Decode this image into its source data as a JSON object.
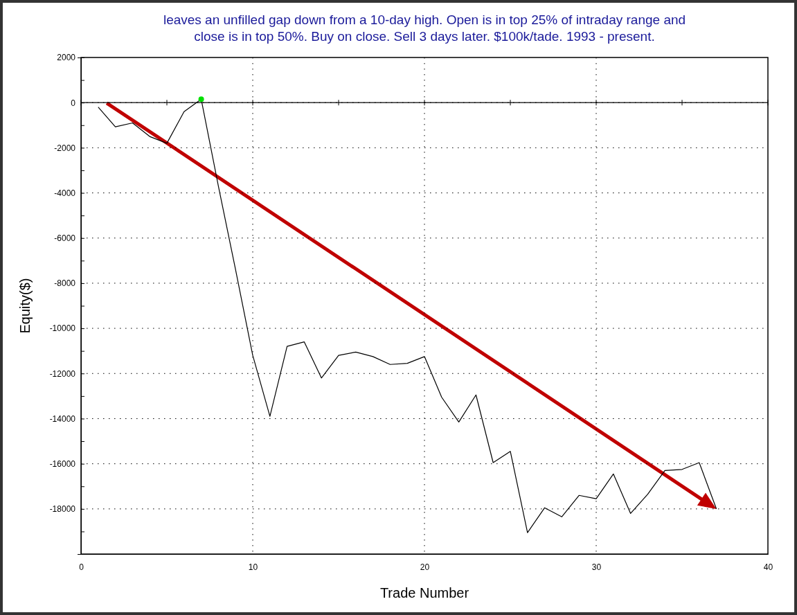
{
  "chart_data": {
    "type": "line",
    "title": "leaves an unfilled gap down from a 10-day high. Open is in top 25% of intraday range and\nclose is in top 50%. Buy on close. Sell 3 days later. $100k/tade. 1993 - present.",
    "xlabel": "Trade Number",
    "ylabel": "Equity($)",
    "x": [
      1,
      2,
      3,
      4,
      5,
      6,
      7,
      8,
      9,
      10,
      11,
      12,
      13,
      14,
      15,
      16,
      17,
      18,
      19,
      20,
      21,
      22,
      23,
      24,
      25,
      26,
      27,
      28,
      29,
      30,
      31,
      32,
      33,
      34,
      35,
      36,
      37
    ],
    "series": [
      {
        "color": "#000000",
        "values": [
          -200,
          -1070,
          -900,
          -1500,
          -1800,
          -400,
          150,
          -3700,
          -7400,
          -11200,
          -13900,
          -10800,
          -10600,
          -12200,
          -11200,
          -11050,
          -11250,
          -11600,
          -11550,
          -11250,
          -13050,
          -14150,
          -12950,
          -15950,
          -15450,
          -19050,
          -17950,
          -18350,
          -17400,
          -17550,
          -16450,
          -18200,
          -17350,
          -16300,
          -16250,
          -15950,
          -18000
        ]
      },
      {
        "type": "scatter",
        "color": "#00e000",
        "marker": "circle",
        "x": [
          7
        ],
        "values": [
          150
        ]
      }
    ],
    "xlim": [
      0,
      40
    ],
    "xticks": [
      0,
      {
        "value": 5,
        "label": null
      },
      10,
      {
        "value": 15,
        "label": null
      },
      20,
      {
        "value": 25,
        "label": null
      },
      30,
      {
        "value": 35,
        "label": null
      },
      40
    ],
    "ylim": [
      -20000,
      2000
    ],
    "yticks": [
      {
        "value": -19000,
        "label": null
      },
      -18000,
      {
        "value": -17000,
        "label": null
      },
      -16000,
      {
        "value": -15000,
        "label": null
      },
      -14000,
      {
        "value": -13000,
        "label": null
      },
      -12000,
      {
        "value": -11000,
        "label": null
      },
      -10000,
      {
        "value": -9000,
        "label": null
      },
      -8000,
      {
        "value": -7000,
        "label": null
      },
      -6000,
      {
        "value": -5000,
        "label": null
      },
      -4000,
      {
        "value": -3000,
        "label": null
      },
      -2000,
      {
        "value": -1000,
        "label": null
      },
      0,
      {
        "value": 1000,
        "label": null
      },
      2000
    ],
    "grid": true,
    "line_style": "solid",
    "marker": "none",
    "ref_lines": [
      {
        "axis": "y",
        "value": 0,
        "color": "#000000"
      }
    ]
  }
}
